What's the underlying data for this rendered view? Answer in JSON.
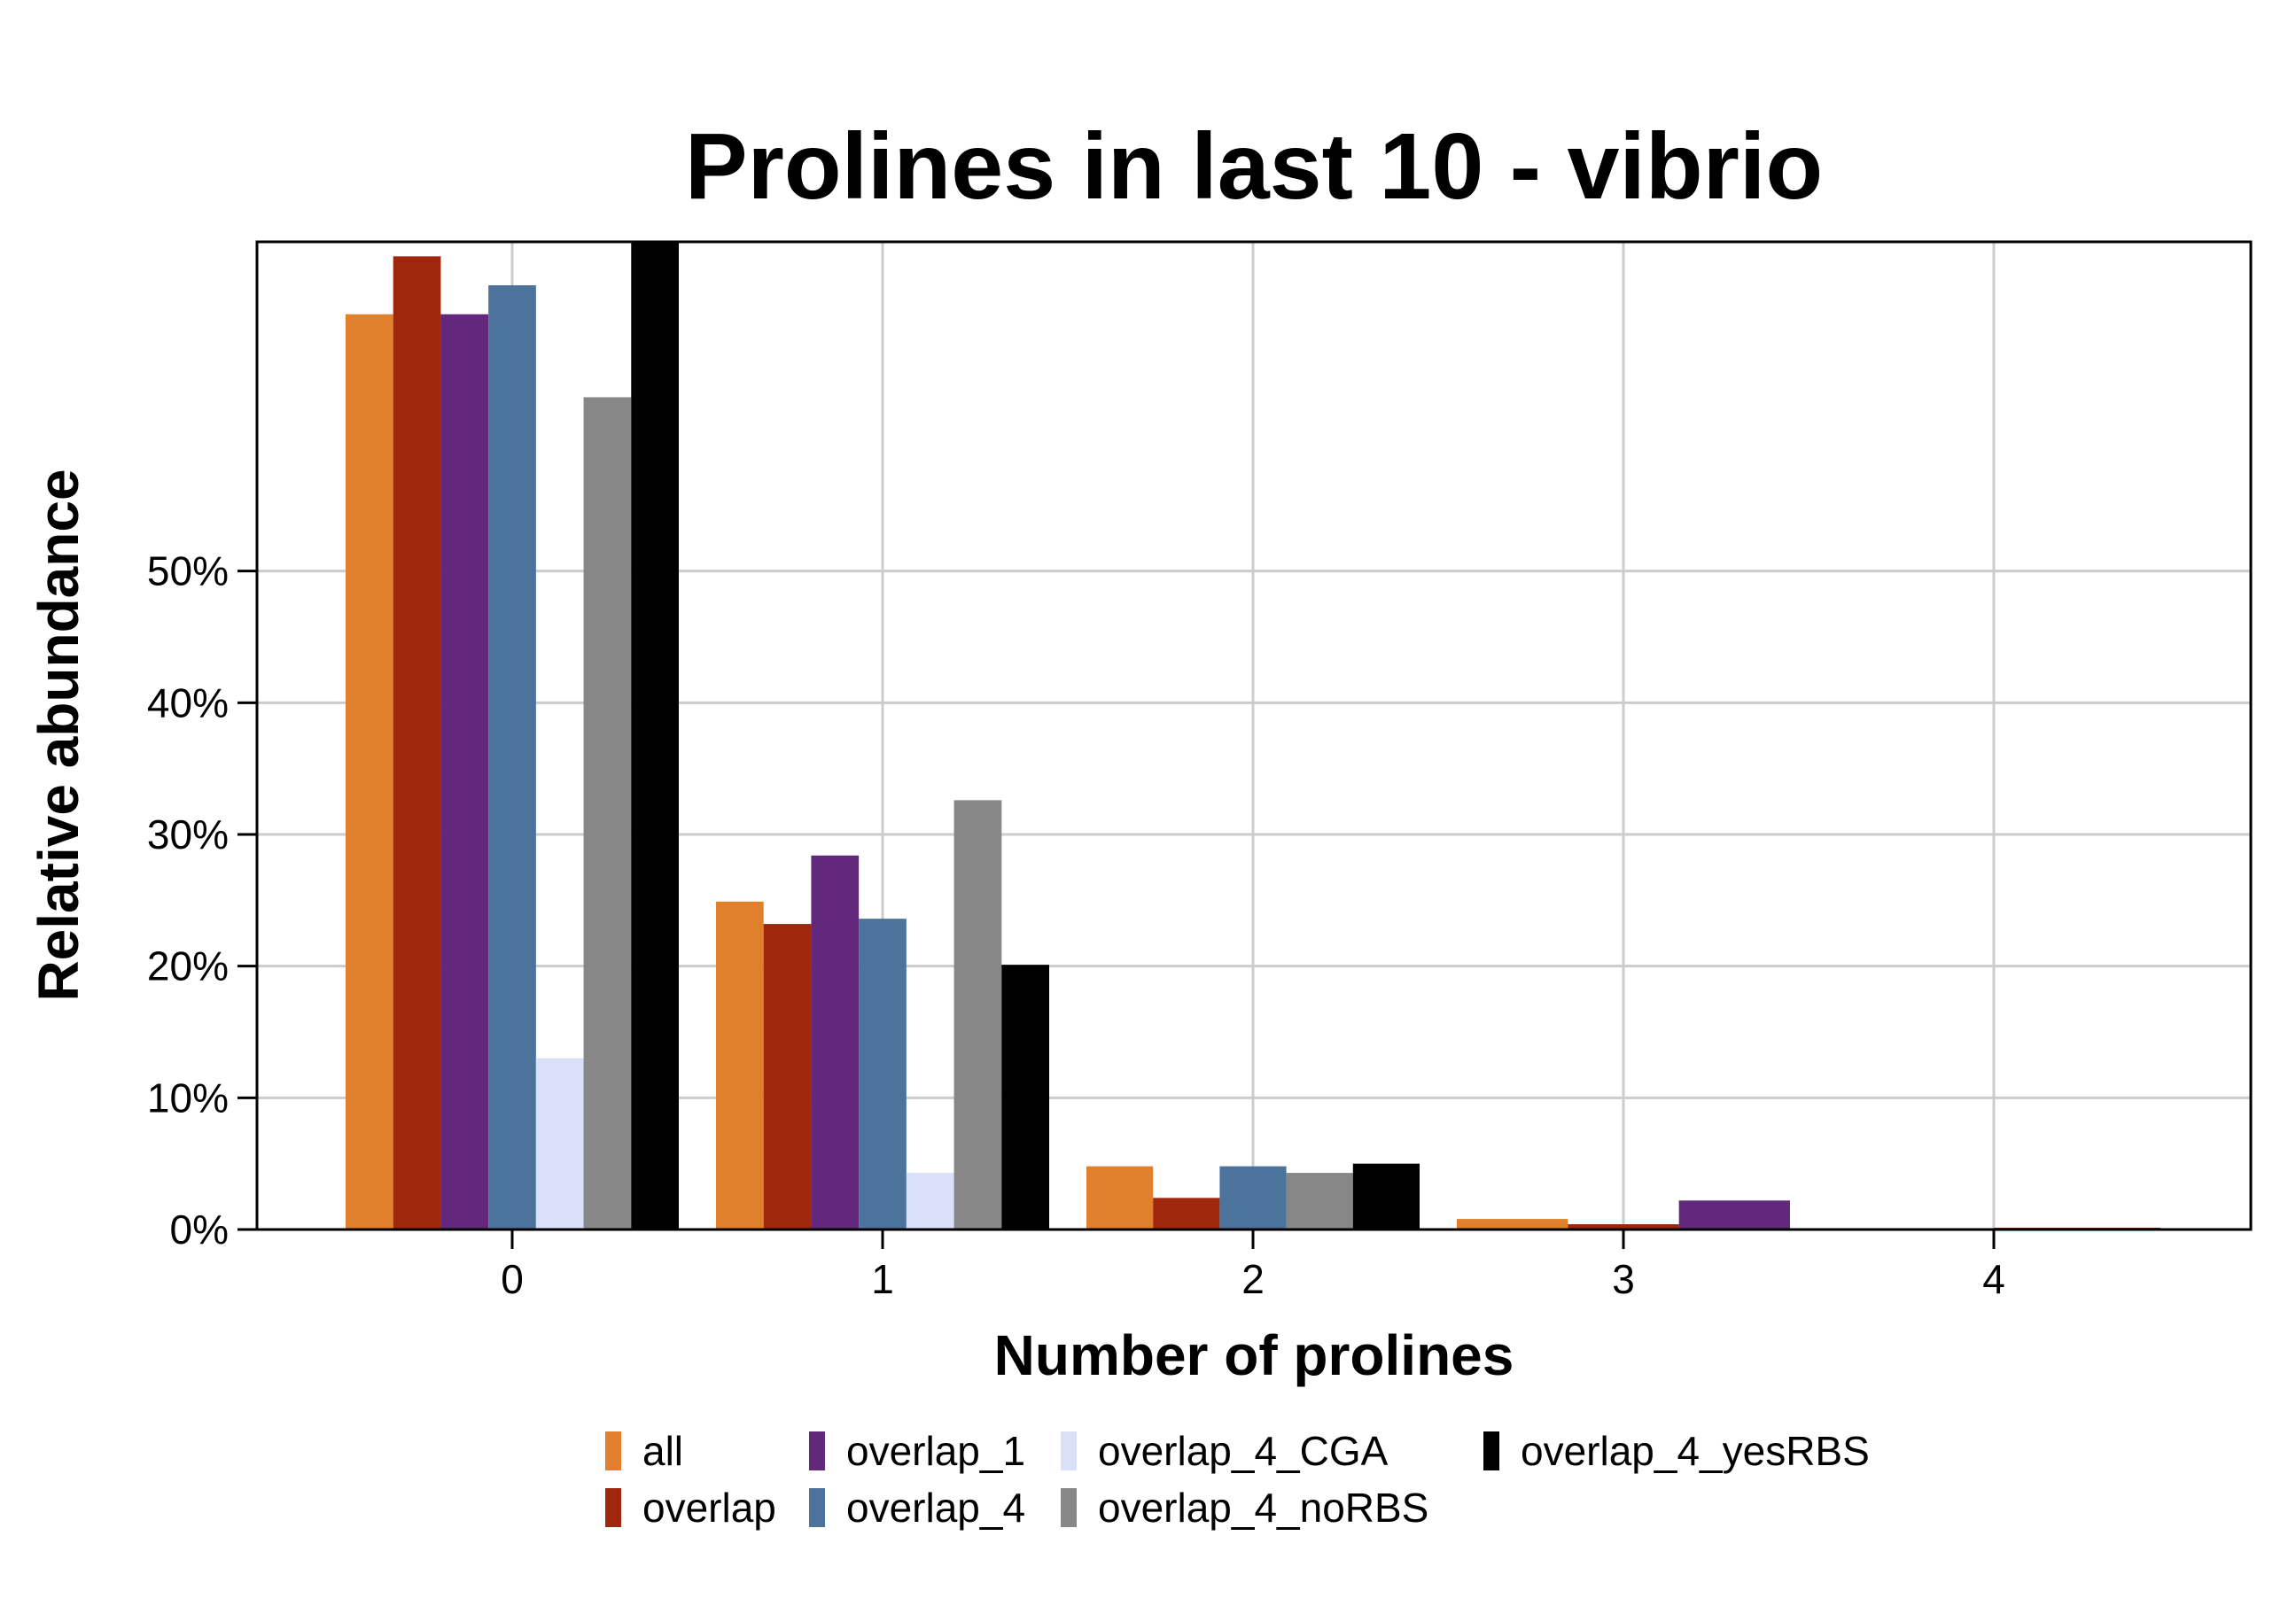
{
  "chart_data": {
    "type": "bar",
    "title": "Prolines in last 10 - vibrio",
    "xlabel": "Number of prolines",
    "ylabel": "Relative abundance",
    "categories": [
      "0",
      "1",
      "2",
      "3",
      "4"
    ],
    "y_ticks": [
      "0%",
      "10%",
      "20%",
      "30%",
      "40%",
      "50%"
    ],
    "ylim": [
      0,
      75
    ],
    "grid": true,
    "legend_position": "bottom",
    "series": [
      {
        "name": "all",
        "color": "#E07F2C",
        "values": [
          69.5,
          24.9,
          4.8,
          0.8,
          0.0
        ]
      },
      {
        "name": "overlap",
        "color": "#9E270C",
        "values": [
          73.9,
          23.2,
          2.4,
          0.4,
          0.1
        ]
      },
      {
        "name": "overlap_1",
        "color": "#62287C",
        "values": [
          69.5,
          28.4,
          null,
          2.2,
          null
        ]
      },
      {
        "name": "overlap_4",
        "color": "#4B739C",
        "values": [
          71.7,
          23.6,
          4.8,
          null,
          null
        ]
      },
      {
        "name": "overlap_4_CGA",
        "color": "#D9E0F7",
        "values": [
          13.0,
          4.3,
          null,
          null,
          null
        ]
      },
      {
        "name": "overlap_4_noRBS",
        "color": "#878787",
        "values": [
          63.2,
          32.6,
          4.3,
          null,
          null
        ]
      },
      {
        "name": "overlap_4_yesRBS",
        "color": "#000000",
        "values": [
          75.0,
          20.1,
          5.0,
          null,
          null
        ]
      }
    ]
  }
}
